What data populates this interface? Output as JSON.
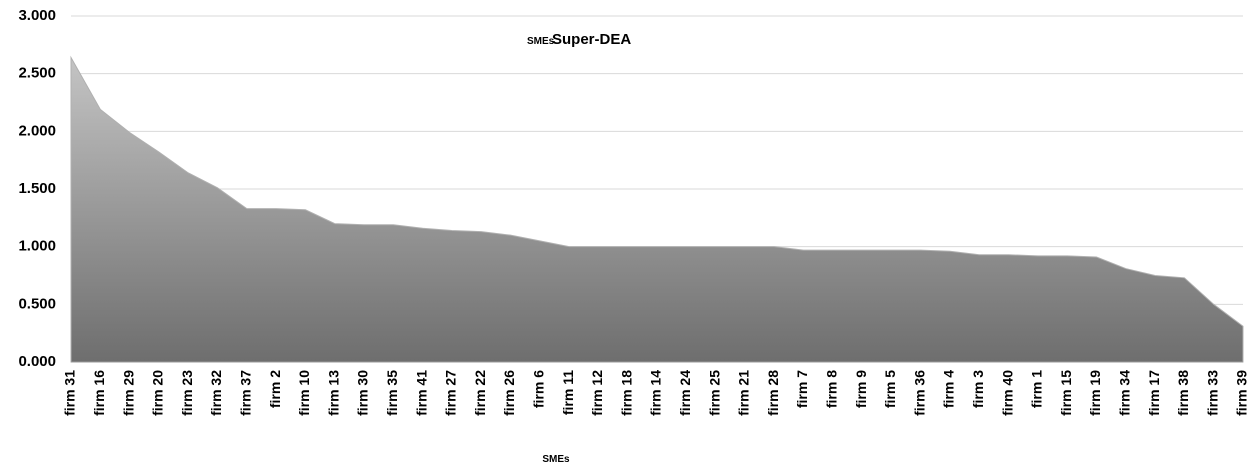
{
  "chart_data": {
    "type": "area",
    "title": "Super-DEA",
    "x_label": "SMEs",
    "categories": [
      "firm 31",
      "firm 16",
      "firm 29",
      "firm 20",
      "firm 23",
      "firm 32",
      "firm 37",
      "firm 2",
      "firm 10",
      "firm 13",
      "firm 30",
      "firm 35",
      "firm 41",
      "firm 27",
      "firm 22",
      "firm 26",
      "firm 6",
      "firm 11",
      "firm 12",
      "firm 18",
      "firm 14",
      "firm 24",
      "firm 25",
      "firm 21",
      "firm 28",
      "firm 7",
      "firm 8",
      "firm 9",
      "firm 5",
      "firm 36",
      "firm 4",
      "firm 3",
      "firm 40",
      "firm 1",
      "firm 15",
      "firm 19",
      "firm 34",
      "firm 17",
      "firm 38",
      "firm 33",
      "firm 39"
    ],
    "series": [
      {
        "name": "SMEs",
        "color": "#8a8a8a",
        "values": [
          2.64,
          2.19,
          1.99,
          1.82,
          1.64,
          1.51,
          1.33,
          1.33,
          1.32,
          1.2,
          1.19,
          1.19,
          1.16,
          1.14,
          1.13,
          1.1,
          1.05,
          1.0,
          1.0,
          1.0,
          1.0,
          1.0,
          1.0,
          1.0,
          1.0,
          0.97,
          0.97,
          0.97,
          0.97,
          0.97,
          0.96,
          0.93,
          0.93,
          0.92,
          0.92,
          0.91,
          0.81,
          0.75,
          0.73,
          0.5,
          0.31
        ]
      }
    ],
    "ylim": [
      0,
      3
    ],
    "yticks": [
      {
        "value": 0,
        "label": "0.000"
      },
      {
        "value": 0.5,
        "label": "0.500"
      },
      {
        "value": 1,
        "label": "1.000"
      },
      {
        "value": 1.5,
        "label": "1.500"
      },
      {
        "value": 2,
        "label": "2.000"
      },
      {
        "value": 2.5,
        "label": "2.500"
      },
      {
        "value": 3,
        "label": "3.000"
      }
    ],
    "grid": true
  }
}
